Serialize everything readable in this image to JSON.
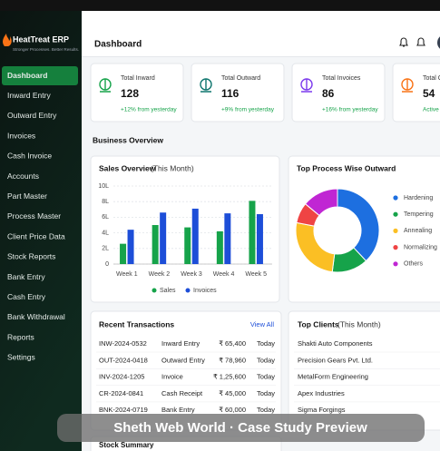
{
  "header": {
    "brand": "HeatTreat ERP",
    "tagline": "Stronger Processes. Better Results.",
    "page_title": "Dashboard"
  },
  "nav": [
    "Dashboard",
    "Inward Entry",
    "Outward Entry",
    "Invoices",
    "Cash Invoice",
    "Accounts",
    "Part Master",
    "Process Master",
    "Client Price Data",
    "Stock Reports",
    "Bank Entry",
    "Cash Entry",
    "Bank Withdrawal",
    "Reports",
    "Settings"
  ],
  "stats": [
    {
      "label": "Total Inward",
      "value": 128,
      "change": "+12% from yesterday",
      "color": "#16a34a"
    },
    {
      "label": "Total Outward",
      "value": 116,
      "change": "+9% from yesterday",
      "color": "#0f766e"
    },
    {
      "label": "Total Invoices",
      "value": 86,
      "change": "+16% from yesterday",
      "color": "#7c3aed"
    },
    {
      "label": "Total C",
      "value": 54,
      "change": "Active",
      "color": "#f97316"
    }
  ],
  "section_title": "Business Overview",
  "chart_data": [
    {
      "type": "bar",
      "title": "Sales Overview",
      "subtitle": "(This Month)",
      "categories": [
        "Week 1",
        "Week 2",
        "Week 3",
        "Week 4",
        "Week 5"
      ],
      "series": [
        {
          "name": "Sales",
          "color": "#16a34a",
          "values": [
            2.6,
            5.0,
            4.7,
            4.2,
            8.1
          ]
        },
        {
          "name": "Invoices",
          "color": "#1d4ed8",
          "values": [
            4.4,
            6.6,
            7.1,
            6.5,
            6.4
          ]
        }
      ],
      "ylim": [
        0,
        10
      ],
      "yticks": [
        0,
        {
          "value": 2,
          "label": "2L"
        },
        {
          "value": 4,
          "label": "4L"
        },
        {
          "value": 6,
          "label": "6L"
        },
        {
          "value": 8,
          "label": "8L"
        },
        {
          "value": 10,
          "label": "10L"
        }
      ],
      "grid": true
    },
    {
      "type": "pie",
      "title": "Top Process Wise Outward",
      "categories": [
        "Hardening",
        "Tempering",
        "Annealing",
        "Normalizing",
        "Others"
      ],
      "values": [
        38,
        14,
        26,
        8,
        14
      ],
      "colors": [
        "#1d6fe0",
        "#16a34a",
        "#fbbf24",
        "#ef4444",
        "#c026d3"
      ]
    }
  ],
  "transactions": {
    "title": "Recent Transactions",
    "link": "View All",
    "rows": [
      [
        "INW-2024-0532",
        "Inward Entry",
        "₹ 65,400",
        "Today"
      ],
      [
        "OUT-2024-0418",
        "Outward Entry",
        "₹ 78,960",
        "Today"
      ],
      [
        "INV-2024-1205",
        "Invoice",
        "₹ 1,25,600",
        "Today"
      ],
      [
        "CR-2024-0841",
        "Cash Receipt",
        "₹ 45,000",
        "Today"
      ],
      [
        "BNK-2024-0719",
        "Bank Entry",
        "₹ 60,000",
        "Today"
      ]
    ]
  },
  "clients": {
    "title": "Top Clients",
    "subtitle": "(This Month)",
    "rows": [
      "Shakti Auto Components",
      "Precision Gears Pvt. Ltd.",
      "MetalForm Engineering",
      "Apex Industries",
      "Sigma Forgings"
    ]
  },
  "stock_summary": "Stock Summary",
  "watermark": "Sheth Web World · Case Study Preview"
}
